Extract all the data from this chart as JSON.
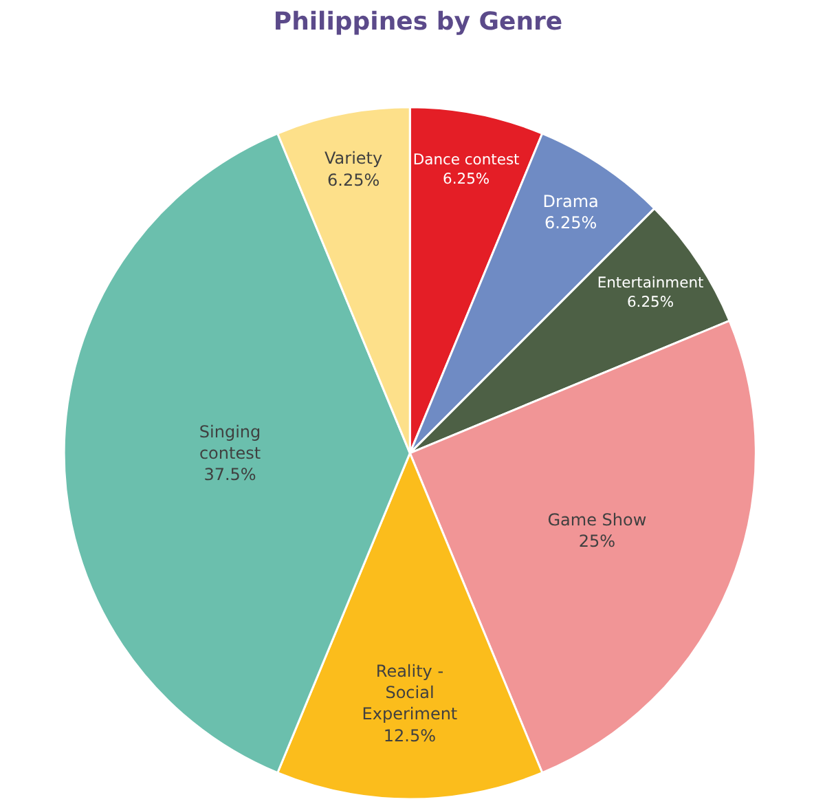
{
  "chart_data": {
    "type": "pie",
    "title": "Philippines by Genre",
    "categories": [
      "Dance contest",
      "Drama",
      "Entertainment",
      "Game Show",
      "Reality - Social Experiment",
      "Singing contest",
      "Variety"
    ],
    "values": [
      6.25,
      6.25,
      6.25,
      25,
      12.5,
      37.5,
      6.25
    ],
    "value_labels": [
      "6.25%",
      "6.25%",
      "6.25%",
      "25%",
      "12.5%",
      "37.5%",
      "6.25%"
    ],
    "colors": [
      "#e41e26",
      "#6f8bc4",
      "#4d6045",
      "#f19596",
      "#fbbd1c",
      "#6bbfad",
      "#fde08a"
    ],
    "legend": false
  }
}
